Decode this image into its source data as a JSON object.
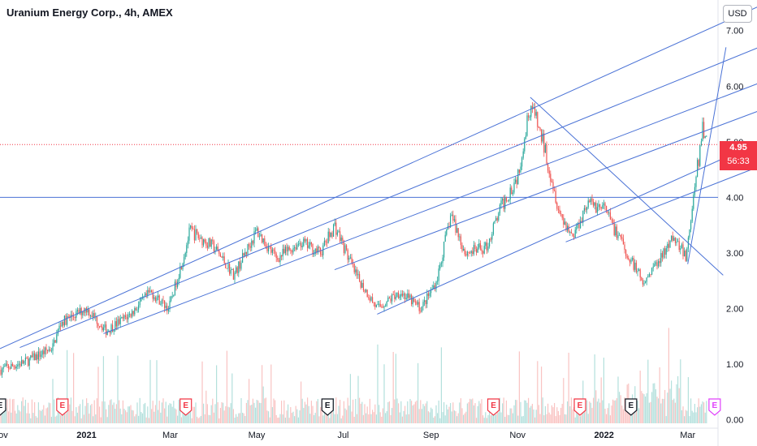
{
  "header": {
    "title": "Uranium Energy Corp., 4h, AMEX",
    "currency": "USD"
  },
  "last_price": {
    "value": "4.95",
    "countdown": "56:33"
  },
  "colors": {
    "up": "#26a69a",
    "down": "#ef5350",
    "line": "#4a72d6",
    "last": "#f23645",
    "earnings_red": "#f23645",
    "earnings_pink": "#e040fb"
  },
  "chart_data": {
    "type": "candlestick",
    "title": "Uranium Energy Corp., 4h, AMEX",
    "ylim": [
      -0.15,
      7.55
    ],
    "y_ticks": [
      "7.00",
      "6.00",
      "5.00",
      "4.00",
      "3.00",
      "2.00",
      "1.00",
      "0.00"
    ],
    "x_ticks": [
      "Nov",
      "2021",
      "Mar",
      "May",
      "Jul",
      "Sep",
      "Nov",
      "2022",
      "Mar"
    ],
    "horizontal_line": 4.0,
    "price_path": [
      [
        "2020-11-01",
        0.9
      ],
      [
        "2020-11-20",
        1.05
      ],
      [
        "2020-12-08",
        1.3
      ],
      [
        "2020-12-14",
        1.75
      ],
      [
        "2021-01-01",
        2.0
      ],
      [
        "2021-01-15",
        1.6
      ],
      [
        "2021-02-01",
        1.9
      ],
      [
        "2021-02-15",
        2.3
      ],
      [
        "2021-02-28",
        2.0
      ],
      [
        "2021-03-10",
        2.9
      ],
      [
        "2021-03-15",
        3.4
      ],
      [
        "2021-04-01",
        3.1
      ],
      [
        "2021-04-15",
        2.6
      ],
      [
        "2021-05-01",
        3.4
      ],
      [
        "2021-05-15",
        2.9
      ],
      [
        "2021-06-01",
        3.2
      ],
      [
        "2021-06-15",
        3.0
      ],
      [
        "2021-06-25",
        3.5
      ],
      [
        "2021-07-10",
        2.6
      ],
      [
        "2021-07-25",
        2.0
      ],
      [
        "2021-08-10",
        2.3
      ],
      [
        "2021-08-25",
        2.0
      ],
      [
        "2021-09-05",
        2.5
      ],
      [
        "2021-09-15",
        3.7
      ],
      [
        "2021-09-25",
        3.0
      ],
      [
        "2021-10-10",
        3.1
      ],
      [
        "2021-10-20",
        3.8
      ],
      [
        "2021-11-01",
        4.4
      ],
      [
        "2021-11-10",
        5.7
      ],
      [
        "2021-11-20",
        4.9
      ],
      [
        "2021-12-01",
        3.7
      ],
      [
        "2021-12-10",
        3.3
      ],
      [
        "2021-12-20",
        3.9
      ],
      [
        "2022-01-01",
        3.8
      ],
      [
        "2022-01-15",
        3.1
      ],
      [
        "2022-01-28",
        2.5
      ],
      [
        "2022-02-10",
        2.9
      ],
      [
        "2022-02-20",
        3.3
      ],
      [
        "2022-02-28",
        2.9
      ],
      [
        "2022-03-05",
        4.0
      ],
      [
        "2022-03-12",
        5.3
      ],
      [
        "2022-03-15",
        4.95
      ]
    ],
    "trend_lines": [
      {
        "start": [
          "2020-11-01",
          1.28
        ],
        "end": [
          "2022-04-30",
          7.55
        ]
      },
      {
        "start": [
          "2020-11-15",
          1.3
        ],
        "end": [
          "2022-04-30",
          6.8
        ]
      },
      {
        "start": [
          "2021-01-13",
          1.55
        ],
        "end": [
          "2022-04-30",
          6.15
        ]
      },
      {
        "start": [
          "2021-06-25",
          2.7
        ],
        "end": [
          "2022-04-30",
          5.65
        ]
      },
      {
        "start": [
          "2021-07-25",
          1.9
        ],
        "end": [
          "2022-04-30",
          5.1
        ]
      },
      {
        "start": [
          "2021-12-05",
          3.2
        ],
        "end": [
          "2022-04-30",
          4.65
        ]
      },
      {
        "start": [
          "2021-11-10",
          5.8
        ],
        "end": [
          "2022-03-26",
          2.6
        ]
      },
      {
        "start": [
          "2022-03-01",
          2.8
        ],
        "end": [
          "2022-03-28",
          6.7
        ]
      }
    ],
    "earnings_markers": [
      {
        "date": "2020-11-01",
        "label": "E",
        "style": "outline"
      },
      {
        "date": "2020-12-15",
        "label": "E",
        "style": "red"
      },
      {
        "date": "2021-03-12",
        "label": "E",
        "style": "red"
      },
      {
        "date": "2021-06-20",
        "label": "E",
        "style": "outline"
      },
      {
        "date": "2021-10-15",
        "label": "E",
        "style": "red"
      },
      {
        "date": "2021-12-15",
        "label": "E",
        "style": "red"
      },
      {
        "date": "2022-01-20",
        "label": "E",
        "style": "outline"
      },
      {
        "date": "2022-03-20",
        "label": "E",
        "style": "pink"
      }
    ]
  }
}
